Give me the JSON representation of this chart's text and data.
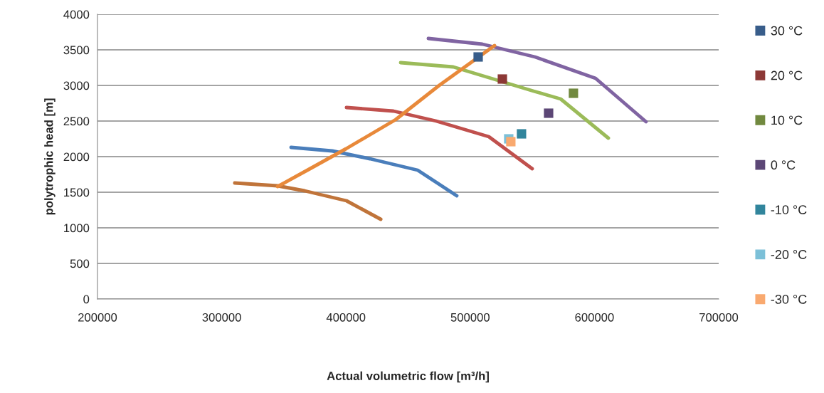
{
  "chart_data": {
    "type": "line",
    "xlabel": "Actual volumetric flow [m³/h]",
    "ylabel": "polytrophic head [m]",
    "xlim": [
      200000,
      700000
    ],
    "xticks": [
      200000,
      300000,
      400000,
      500000,
      600000,
      700000
    ],
    "ylim": [
      0,
      4000
    ],
    "yticks": [
      0,
      500,
      1000,
      1500,
      2000,
      2500,
      3000,
      3500,
      4000
    ],
    "grid": "y",
    "legend": "right",
    "line_style": "solid",
    "series": [
      {
        "color": "#4a7ebb",
        "x": [
          355800,
          389000,
          419300,
          457700,
          489200
        ],
        "values": [
          2130,
          2080,
          1970,
          1810,
          1450
        ]
      },
      {
        "color": "#c0504d",
        "x": [
          400400,
          438200,
          472600,
          515000,
          549900
        ],
        "values": [
          2690,
          2640,
          2500,
          2280,
          1830
        ]
      },
      {
        "color": "#9bbb59",
        "x": [
          444000,
          486400,
          551000,
          572800,
          611200
        ],
        "values": [
          3320,
          3260,
          2920,
          2810,
          2260
        ]
      },
      {
        "color": "#8064a2",
        "x": [
          466300,
          509800,
          552200,
          600900,
          641500
        ],
        "values": [
          3660,
          3580,
          3400,
          3100,
          2490
        ]
      },
      {
        "color": "#c0743a",
        "x": [
          310500,
          345000,
          366700,
          400400,
          428000
        ],
        "values": [
          1630,
          1590,
          1520,
          1380,
          1120
        ]
      },
      {
        "color": "#e8893a",
        "x": [
          345000,
          370000,
          400000,
          440000,
          475000,
          519600
        ],
        "values": [
          1580,
          1820,
          2110,
          2520,
          3000,
          3560
        ]
      },
      {
        "type": "scatter",
        "marker": "square",
        "name": "30 °C",
        "color": "#385d8a",
        "x": [
          506400
        ],
        "values": [
          3400
        ]
      },
      {
        "type": "scatter",
        "marker": "square",
        "name": "20 °C",
        "color": "#8c3836",
        "x": [
          525900
        ],
        "values": [
          3090
        ]
      },
      {
        "type": "scatter",
        "marker": "square",
        "name": "10 °C",
        "color": "#71893f",
        "x": [
          583100
        ],
        "values": [
          2890
        ]
      },
      {
        "type": "scatter",
        "marker": "square",
        "name": "0 °C",
        "color": "#5c4776",
        "x": [
          563100
        ],
        "values": [
          2610
        ]
      },
      {
        "type": "scatter",
        "marker": "square",
        "name": "-10 °C",
        "color": "#31859c",
        "x": [
          541300
        ],
        "values": [
          2320
        ]
      },
      {
        "type": "scatter",
        "marker": "square",
        "name": "-20 °C",
        "color": "#7cc0d8",
        "x": [
          531000
        ],
        "values": [
          2250
        ]
      },
      {
        "type": "scatter",
        "marker": "square",
        "name": "-30 °C",
        "color": "#f9a96f",
        "x": [
          532700
        ],
        "values": [
          2210
        ]
      }
    ]
  }
}
